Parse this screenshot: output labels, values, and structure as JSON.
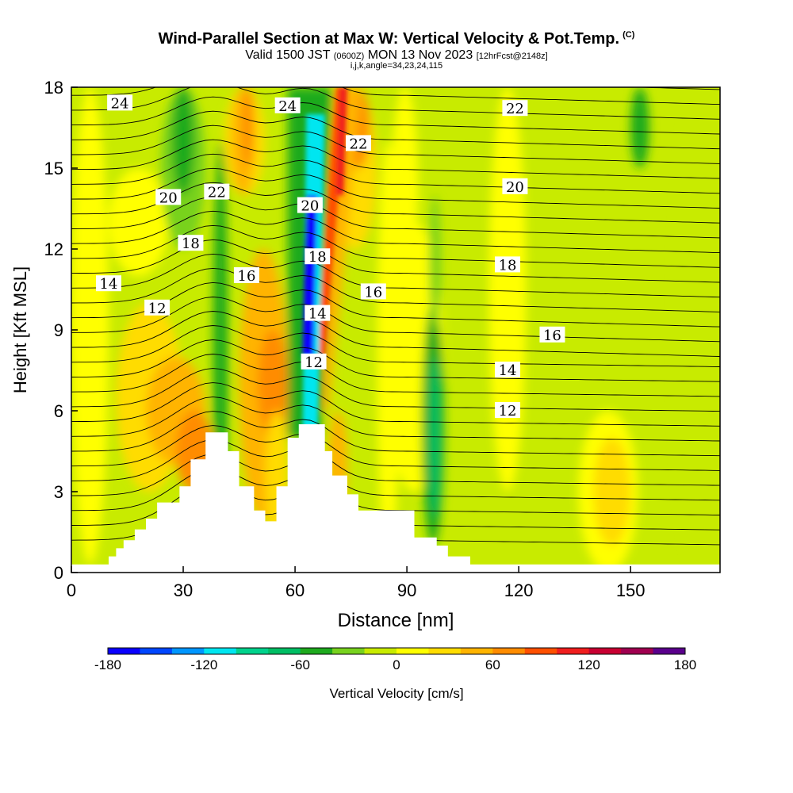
{
  "header": {
    "title": "Wind-Parallel Section at Max W: Vertical Velocity & Pot.Temp.",
    "copyright": "(C)",
    "valid_prefix": "Valid 1500 JST",
    "valid_utc": "(0600Z)",
    "valid_date": "MON 13 Nov 2023",
    "forecast": "[12hrFcst@2148z]",
    "indices": "i,j,k,angle=34,23,24,115"
  },
  "chart_data": {
    "type": "heatmap",
    "xlabel": "Distance [nm]",
    "ylabel": "Height [Kft MSL]",
    "xlim": [
      0,
      174
    ],
    "ylim": [
      0,
      18
    ],
    "x_ticks": [
      0,
      30,
      60,
      90,
      120,
      150
    ],
    "y_ticks": [
      0,
      3,
      6,
      9,
      12,
      15,
      18
    ],
    "colorbar": {
      "label": "Vertical Velocity [cm/s]",
      "range": [
        -180,
        180
      ],
      "tick_labels": [
        -180,
        -120,
        -60,
        0,
        60,
        120,
        180
      ],
      "colors": [
        "#0a00ff",
        "#0046ff",
        "#0096ff",
        "#00e6f0",
        "#00d28c",
        "#00be64",
        "#1eaa1e",
        "#78d21e",
        "#c8eb00",
        "#ffff00",
        "#ffdc00",
        "#ffb400",
        "#ff8c00",
        "#ff5000",
        "#f01e1e",
        "#c80032",
        "#a00050",
        "#5a008c"
      ]
    },
    "terrain_profile": {
      "x": [
        0,
        10,
        12,
        14,
        17,
        20,
        23,
        29,
        32,
        36,
        42,
        45,
        49,
        52,
        55,
        58,
        61,
        68,
        70,
        74,
        77,
        83,
        92,
        98,
        101,
        107,
        174
      ],
      "y": [
        0.3,
        0.6,
        0.9,
        1.2,
        1.6,
        2.0,
        2.6,
        3.2,
        4.2,
        5.2,
        4.5,
        3.2,
        2.3,
        1.9,
        3.2,
        5.0,
        5.5,
        4.5,
        3.6,
        2.9,
        2.3,
        2.3,
        1.3,
        1.0,
        0.6,
        0.3,
        0.3
      ]
    },
    "theta_contours": {
      "unit": "deg C (pot. temp.)",
      "labels": [
        {
          "text": "24",
          "x": 13,
          "y": 17.4
        },
        {
          "text": "24",
          "x": 58,
          "y": 17.3
        },
        {
          "text": "22",
          "x": 77,
          "y": 15.9
        },
        {
          "text": "22",
          "x": 119,
          "y": 17.2
        },
        {
          "text": "22",
          "x": 39,
          "y": 14.1
        },
        {
          "text": "20",
          "x": 26,
          "y": 13.9
        },
        {
          "text": "20",
          "x": 64,
          "y": 13.6
        },
        {
          "text": "20",
          "x": 119,
          "y": 14.3
        },
        {
          "text": "18",
          "x": 32,
          "y": 12.2
        },
        {
          "text": "18",
          "x": 66,
          "y": 11.7
        },
        {
          "text": "18",
          "x": 117,
          "y": 11.4
        },
        {
          "text": "16",
          "x": 47,
          "y": 11.0
        },
        {
          "text": "16",
          "x": 81,
          "y": 10.4
        },
        {
          "text": "16",
          "x": 129,
          "y": 8.8
        },
        {
          "text": "14",
          "x": 10,
          "y": 10.7
        },
        {
          "text": "14",
          "x": 66,
          "y": 9.6
        },
        {
          "text": "14",
          "x": 117,
          "y": 7.5
        },
        {
          "text": "12",
          "x": 23,
          "y": 9.8
        },
        {
          "text": "12",
          "x": 65,
          "y": 7.8
        },
        {
          "text": "12",
          "x": 117,
          "y": 6.0
        }
      ]
    }
  }
}
